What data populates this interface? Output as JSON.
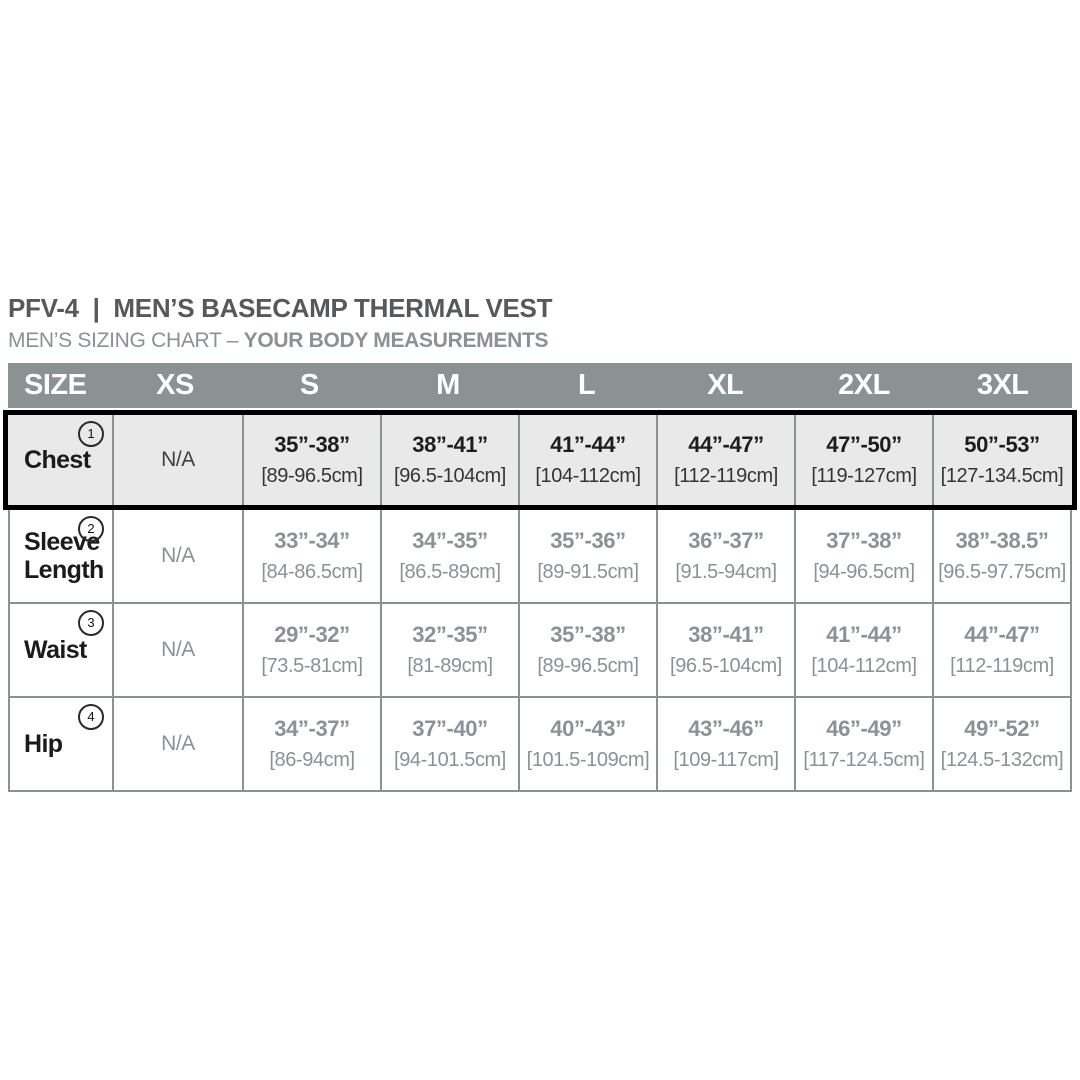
{
  "header": {
    "title": "PFV-4  |  MEN’S BASECAMP THERMAL VEST",
    "subtitle_prefix": "MEN’S SIZING CHART – ",
    "subtitle_emphasis": "YOUR BODY MEASUREMENTS"
  },
  "colors": {
    "band_gray": "#8a9293",
    "grid_gray": "#8a9293",
    "highlight_row_bg": "#e9e9e9",
    "highlight_row_border": "#000000",
    "muted_text": "#8a9293",
    "dark_text": "#1b1b1d",
    "title_text": "#57585a"
  },
  "chart_data": {
    "type": "table",
    "columns": [
      "SIZE",
      "XS",
      "S",
      "M",
      "L",
      "XL",
      "2XL",
      "3XL"
    ],
    "rows": [
      {
        "label": "Chest",
        "note": "1",
        "highlighted": true,
        "cells": [
          {
            "in": "N/A",
            "cm": ""
          },
          {
            "in": "35”-38”",
            "cm": "[89-96.5cm]"
          },
          {
            "in": "38”-41”",
            "cm": "[96.5-104cm]"
          },
          {
            "in": "41”-44”",
            "cm": "[104-112cm]"
          },
          {
            "in": "44”-47”",
            "cm": "[112-119cm]"
          },
          {
            "in": "47”-50”",
            "cm": "[119-127cm]"
          },
          {
            "in": "50”-53”",
            "cm": "[127-134.5cm]"
          }
        ]
      },
      {
        "label": "Sleeve Length",
        "note": "2",
        "highlighted": false,
        "cells": [
          {
            "in": "N/A",
            "cm": ""
          },
          {
            "in": "33”-34”",
            "cm": "[84-86.5cm]"
          },
          {
            "in": "34”-35”",
            "cm": "[86.5-89cm]"
          },
          {
            "in": "35”-36”",
            "cm": "[89-91.5cm]"
          },
          {
            "in": "36”-37”",
            "cm": "[91.5-94cm]"
          },
          {
            "in": "37”-38”",
            "cm": "[94-96.5cm]"
          },
          {
            "in": "38”-38.5”",
            "cm": "[96.5-97.75cm]"
          }
        ]
      },
      {
        "label": "Waist",
        "note": "3",
        "highlighted": false,
        "cells": [
          {
            "in": "N/A",
            "cm": ""
          },
          {
            "in": "29”-32”",
            "cm": "[73.5-81cm]"
          },
          {
            "in": "32”-35”",
            "cm": "[81-89cm]"
          },
          {
            "in": "35”-38”",
            "cm": "[89-96.5cm]"
          },
          {
            "in": "38”-41”",
            "cm": "[96.5-104cm]"
          },
          {
            "in": "41”-44”",
            "cm": "[104-112cm]"
          },
          {
            "in": "44”-47”",
            "cm": "[112-119cm]"
          }
        ]
      },
      {
        "label": "Hip",
        "note": "4",
        "highlighted": false,
        "cells": [
          {
            "in": "N/A",
            "cm": ""
          },
          {
            "in": "34”-37”",
            "cm": "[86-94cm]"
          },
          {
            "in": "37”-40”",
            "cm": "[94-101.5cm]"
          },
          {
            "in": "40”-43”",
            "cm": "[101.5-109cm]"
          },
          {
            "in": "43”-46”",
            "cm": "[109-117cm]"
          },
          {
            "in": "46”-49”",
            "cm": "[117-124.5cm]"
          },
          {
            "in": "49”-52”",
            "cm": "[124.5-132cm]"
          }
        ]
      }
    ]
  }
}
